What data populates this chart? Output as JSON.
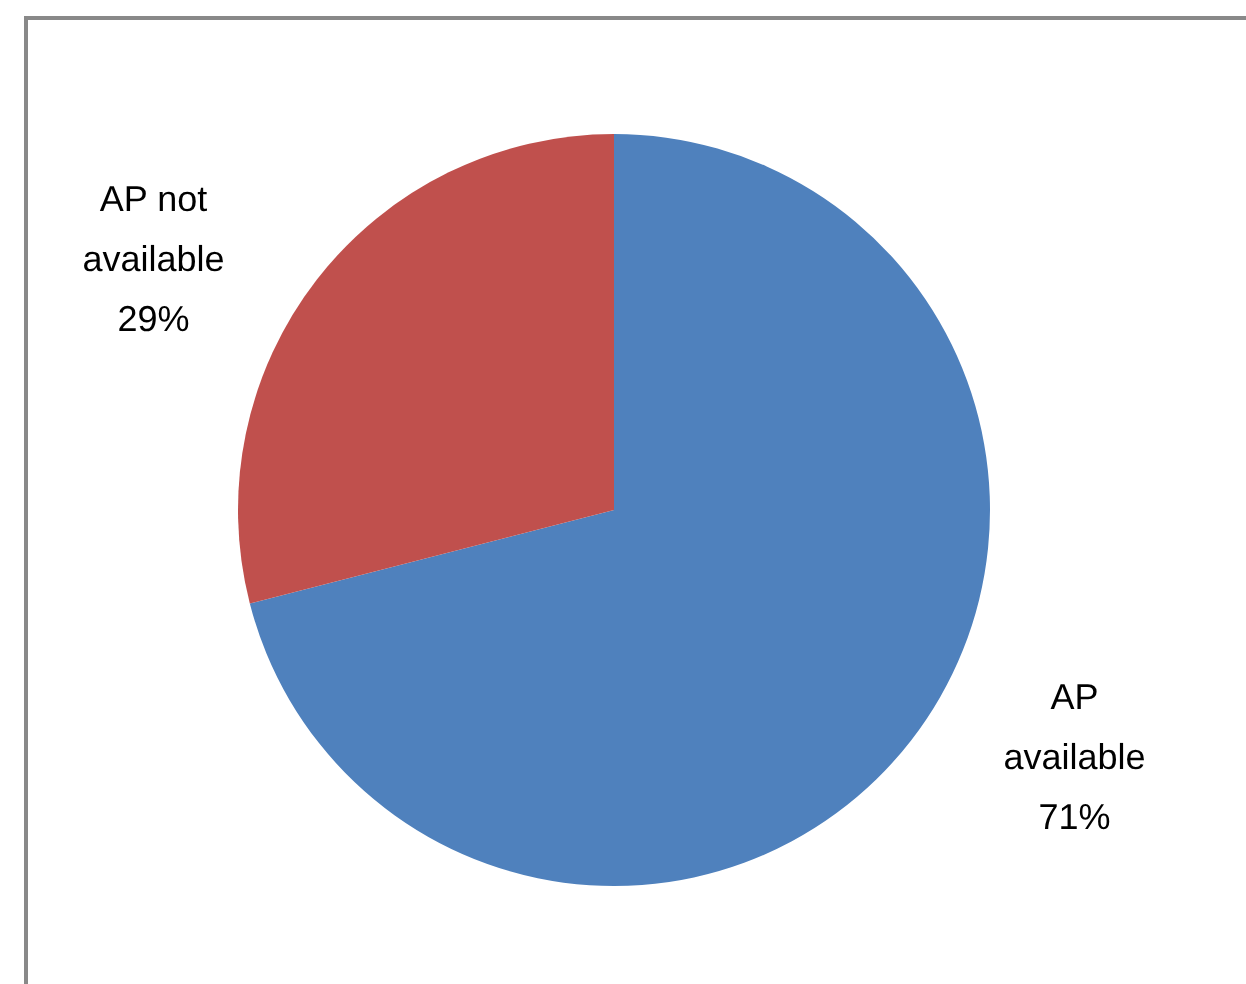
{
  "chart_data": {
    "type": "pie",
    "categories": [
      "AP available",
      "AP not available"
    ],
    "values": [
      71,
      29
    ],
    "colors": [
      "#4f81bd",
      "#c0504d"
    ],
    "value_labels": [
      "71%",
      "29%"
    ],
    "legend": false
  }
}
